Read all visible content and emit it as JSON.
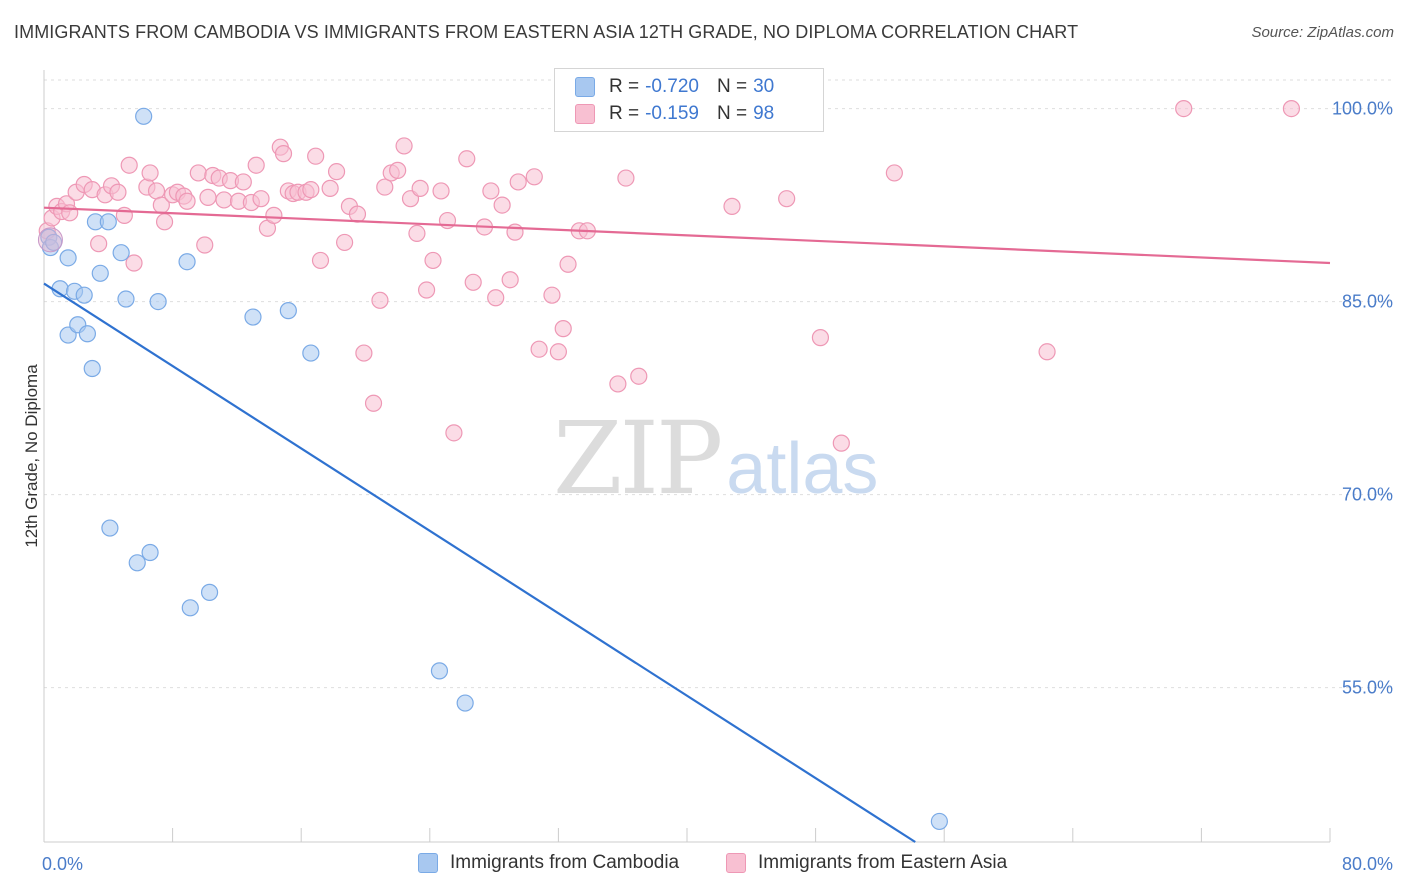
{
  "title": "IMMIGRANTS FROM CAMBODIA VS IMMIGRANTS FROM EASTERN ASIA 12TH GRADE, NO DIPLOMA CORRELATION CHART",
  "source": "Source: ZipAtlas.com",
  "watermark": {
    "zip": "ZIP",
    "atlas": "atlas"
  },
  "legend": {
    "rows": [
      {
        "r_label": "R =",
        "r_value": "-0.720",
        "n_label": "N =",
        "n_value": "30",
        "color": "#a8c8f0",
        "border": "#7aaae6"
      },
      {
        "r_label": "R =",
        "r_value": "-0.159",
        "n_label": "N =",
        "n_value": "98",
        "color": "#f8c0d2",
        "border": "#ee98b5"
      }
    ]
  },
  "bottom_legend": [
    {
      "label": "Immigrants from Cambodia",
      "color": "#a8c8f0",
      "border": "#7aaae6"
    },
    {
      "label": "Immigrants from Eastern Asia",
      "color": "#f8c0d2",
      "border": "#ee98b5"
    }
  ],
  "chart_data": {
    "type": "scatter",
    "title": "IMMIGRANTS FROM CAMBODIA VS IMMIGRANTS FROM EASTERN ASIA 12TH GRADE, NO DIPLOMA CORRELATION CHART",
    "xlabel": "",
    "ylabel": "12th Grade, No Diploma",
    "xlim": [
      0,
      80
    ],
    "ylim": [
      43,
      103
    ],
    "x_tick_labels": [
      "0.0%",
      "80.0%"
    ],
    "y_ticks": [
      55,
      70,
      85,
      100
    ],
    "y_tick_labels": [
      "55.0%",
      "70.0%",
      "85.0%",
      "100.0%"
    ],
    "grid": "horizontal dashed",
    "legend_position": "top-center",
    "series": [
      {
        "name": "Immigrants from Cambodia",
        "color": "#7aaae6",
        "fill": "#a8c8f0",
        "trend": {
          "x": [
            0,
            54.2
          ],
          "y": [
            86.4,
            43.0
          ],
          "color": "#2f72d0"
        },
        "points": [
          [
            0.3,
            90.0
          ],
          [
            0.4,
            89.2
          ],
          [
            0.6,
            89.6
          ],
          [
            1.0,
            86.0
          ],
          [
            1.5,
            88.4
          ],
          [
            1.5,
            82.4
          ],
          [
            1.9,
            85.8
          ],
          [
            2.1,
            83.2
          ],
          [
            2.5,
            85.5
          ],
          [
            2.7,
            82.5
          ],
          [
            3.0,
            79.8
          ],
          [
            3.2,
            91.2
          ],
          [
            3.5,
            87.2
          ],
          [
            4.0,
            91.2
          ],
          [
            4.8,
            88.8
          ],
          [
            5.1,
            85.2
          ],
          [
            6.2,
            99.4
          ],
          [
            7.1,
            85.0
          ],
          [
            8.9,
            88.1
          ],
          [
            13.0,
            83.8
          ],
          [
            15.2,
            84.3
          ],
          [
            16.6,
            81.0
          ],
          [
            4.1,
            67.4
          ],
          [
            5.8,
            64.7
          ],
          [
            6.6,
            65.5
          ],
          [
            9.1,
            61.2
          ],
          [
            10.3,
            62.4
          ],
          [
            24.6,
            56.3
          ],
          [
            26.2,
            53.8
          ],
          [
            55.7,
            44.6
          ]
        ]
      },
      {
        "name": "Immigrants from Eastern Asia",
        "color": "#ee98b5",
        "fill": "#f8c0d2",
        "trend": {
          "x": [
            0,
            80
          ],
          "y": [
            92.3,
            88.0
          ],
          "color": "#e46a94"
        },
        "points": [
          [
            0.2,
            90.5
          ],
          [
            0.5,
            91.5
          ],
          [
            0.8,
            92.4
          ],
          [
            1.1,
            92.0
          ],
          [
            1.4,
            92.6
          ],
          [
            1.6,
            91.9
          ],
          [
            2.0,
            93.5
          ],
          [
            2.5,
            94.1
          ],
          [
            3.0,
            93.7
          ],
          [
            3.4,
            89.5
          ],
          [
            3.8,
            93.3
          ],
          [
            4.2,
            94.0
          ],
          [
            4.6,
            93.5
          ],
          [
            5.0,
            91.7
          ],
          [
            5.3,
            95.6
          ],
          [
            5.6,
            88.0
          ],
          [
            6.4,
            93.9
          ],
          [
            6.6,
            95.0
          ],
          [
            7.0,
            93.6
          ],
          [
            7.3,
            92.5
          ],
          [
            7.5,
            91.2
          ],
          [
            8.0,
            93.3
          ],
          [
            8.3,
            93.5
          ],
          [
            8.7,
            93.2
          ],
          [
            8.9,
            92.8
          ],
          [
            9.6,
            95.0
          ],
          [
            10.0,
            89.4
          ],
          [
            10.2,
            93.1
          ],
          [
            10.5,
            94.8
          ],
          [
            10.9,
            94.6
          ],
          [
            11.2,
            92.9
          ],
          [
            11.6,
            94.4
          ],
          [
            12.1,
            92.8
          ],
          [
            12.4,
            94.3
          ],
          [
            12.9,
            92.7
          ],
          [
            13.2,
            95.6
          ],
          [
            13.5,
            93.0
          ],
          [
            13.9,
            90.7
          ],
          [
            14.3,
            91.7
          ],
          [
            14.7,
            97.0
          ],
          [
            14.9,
            96.5
          ],
          [
            15.2,
            93.6
          ],
          [
            15.5,
            93.4
          ],
          [
            15.8,
            93.5
          ],
          [
            16.3,
            93.5
          ],
          [
            16.6,
            93.7
          ],
          [
            16.9,
            96.3
          ],
          [
            17.2,
            88.2
          ],
          [
            17.8,
            93.8
          ],
          [
            18.2,
            95.1
          ],
          [
            18.7,
            89.6
          ],
          [
            19.0,
            92.4
          ],
          [
            19.5,
            91.8
          ],
          [
            19.9,
            81.0
          ],
          [
            20.5,
            77.1
          ],
          [
            20.9,
            85.1
          ],
          [
            21.2,
            93.9
          ],
          [
            21.6,
            95.0
          ],
          [
            22.0,
            95.2
          ],
          [
            22.4,
            97.1
          ],
          [
            22.8,
            93.0
          ],
          [
            23.2,
            90.3
          ],
          [
            23.4,
            93.8
          ],
          [
            23.8,
            85.9
          ],
          [
            24.2,
            88.2
          ],
          [
            24.7,
            93.6
          ],
          [
            25.1,
            91.3
          ],
          [
            25.5,
            74.8
          ],
          [
            26.3,
            96.1
          ],
          [
            26.7,
            86.5
          ],
          [
            27.4,
            90.8
          ],
          [
            27.8,
            93.6
          ],
          [
            28.1,
            85.3
          ],
          [
            28.5,
            92.5
          ],
          [
            29.0,
            86.7
          ],
          [
            29.3,
            90.4
          ],
          [
            29.5,
            94.3
          ],
          [
            30.5,
            94.7
          ],
          [
            30.8,
            81.3
          ],
          [
            31.6,
            85.5
          ],
          [
            32.0,
            81.1
          ],
          [
            32.3,
            82.9
          ],
          [
            32.6,
            87.9
          ],
          [
            33.3,
            90.5
          ],
          [
            33.8,
            90.5
          ],
          [
            35.7,
            78.6
          ],
          [
            36.2,
            94.6
          ],
          [
            37.0,
            79.2
          ],
          [
            37.8,
            99.6
          ],
          [
            42.8,
            92.4
          ],
          [
            44.5,
            99.9
          ],
          [
            46.2,
            93.0
          ],
          [
            48.3,
            82.2
          ],
          [
            49.6,
            74.0
          ],
          [
            52.9,
            95.0
          ],
          [
            62.4,
            81.1
          ],
          [
            70.9,
            100.0
          ],
          [
            77.6,
            100.0
          ]
        ]
      }
    ]
  }
}
